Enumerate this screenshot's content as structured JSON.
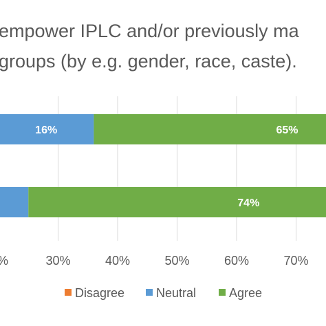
{
  "chart_data": {
    "type": "bar",
    "orientation": "horizontal",
    "stacked": true,
    "title_lines": [
      "empower IPLC and/or previously ma",
      "groups (by e.g. gender, race, caste)."
    ],
    "categories": [
      "",
      ""
    ],
    "series": [
      {
        "name": "Disagree",
        "color": "#ED7D31",
        "values": [
          0,
          0
        ]
      },
      {
        "name": "Neutral",
        "color": "#5B9BD5",
        "values": [
          16,
          20
        ]
      },
      {
        "name": "Agree",
        "color": "#70AD47",
        "values": [
          65,
          74
        ]
      }
    ],
    "visible_series_start": [
      20,
      5
    ],
    "data_labels": [
      {
        "series": "Neutral",
        "category": 0,
        "text": "16%"
      },
      {
        "series": "Agree",
        "category": 0,
        "text": "65%"
      },
      {
        "series": "Agree",
        "category": 1,
        "text": "74%"
      }
    ],
    "x_ticks": [
      {
        "value": 20,
        "label": "%"
      },
      {
        "value": 30,
        "label": "30%"
      },
      {
        "value": 40,
        "label": "40%"
      },
      {
        "value": 50,
        "label": "50%"
      },
      {
        "value": 60,
        "label": "60%"
      },
      {
        "value": 70,
        "label": "70%"
      }
    ],
    "xlim_visible": [
      20,
      75
    ],
    "grid": "vertical",
    "legend_position": "bottom",
    "legend": [
      "Disagree",
      "Neutral",
      "Agree"
    ]
  }
}
